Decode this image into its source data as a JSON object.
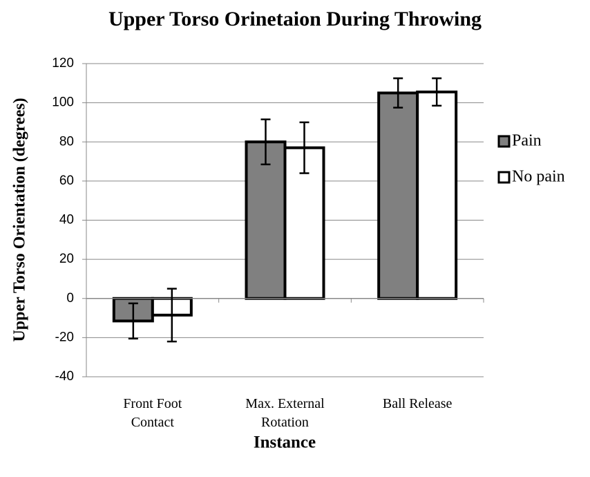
{
  "chart_data": {
    "type": "bar",
    "title": "Upper Torso Orinetaion During Throwing",
    "x_label": "Instance",
    "y_label": "Upper Torso Orientation (degrees)",
    "categories": [
      "Front Foot Contact",
      "Max. External Rotation",
      "Ball Release"
    ],
    "series": [
      {
        "name": "Pain",
        "color": "#808080",
        "values": [
          -11.5,
          80,
          105
        ],
        "errors": [
          9,
          11.5,
          7.5
        ]
      },
      {
        "name": "No pain",
        "color": "#ffffff",
        "values": [
          -8.5,
          77,
          105.5
        ],
        "errors": [
          13.5,
          13,
          7
        ]
      }
    ],
    "ylim": [
      -40,
      120
    ],
    "yticks": [
      -40,
      -20,
      0,
      20,
      40,
      60,
      80,
      100,
      120
    ],
    "grid": true,
    "legend": "right"
  }
}
